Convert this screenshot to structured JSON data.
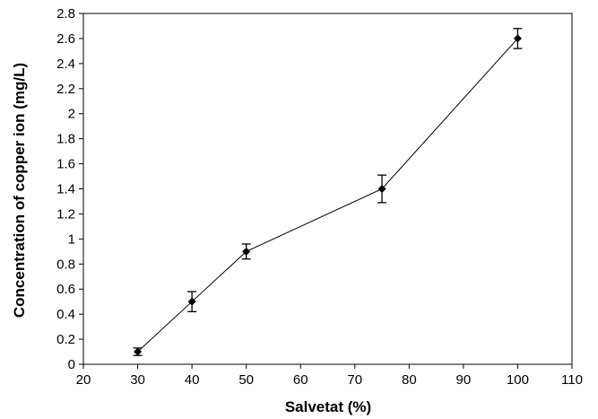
{
  "chart_data": {
    "type": "line",
    "title": "",
    "xlabel": "Salvetat (%)",
    "ylabel": "Concentration of copper ion (mg/L)",
    "xlim": [
      20,
      110
    ],
    "ylim": [
      0,
      2.8
    ],
    "x_ticks": [
      "20",
      "30",
      "40",
      "50",
      "60",
      "70",
      "80",
      "90",
      "100",
      "110"
    ],
    "y_ticks": [
      "0",
      "0.2",
      "0.4",
      "0.6",
      "0.8",
      "1",
      "1.2",
      "1.4",
      "1.6",
      "1.8",
      "2",
      "2.2",
      "2.4",
      "2.6",
      "2.8"
    ],
    "grid": false,
    "legend": "none",
    "marker": "diamond",
    "color": "#000000",
    "series": [
      {
        "x": [
          30,
          40,
          50,
          75,
          100
        ],
        "y": [
          0.1,
          0.5,
          0.9,
          1.4,
          2.6
        ],
        "error": [
          0.03,
          0.08,
          0.06,
          0.11,
          0.08
        ]
      }
    ]
  }
}
